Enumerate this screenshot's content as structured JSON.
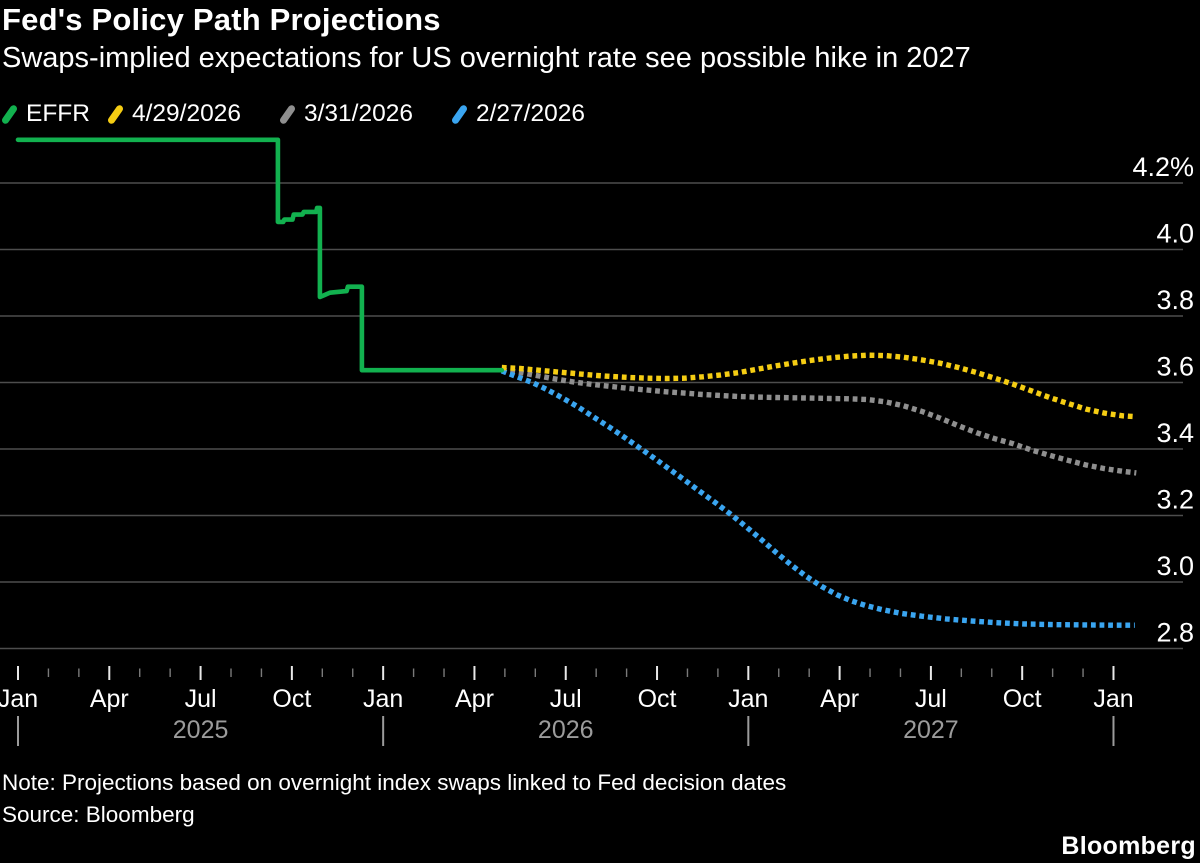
{
  "header": {
    "title": "Fed's Policy Path Projections",
    "subtitle": "Swaps-implied expectations for US overnight rate see possible hike in 2027"
  },
  "legend": {
    "items": [
      {
        "label": "EFFR",
        "color": "#12b14f",
        "icon": "slash-icon"
      },
      {
        "label": "4/29/2026",
        "color": "#f5cd13",
        "icon": "slash-icon"
      },
      {
        "label": "3/31/2026",
        "color": "#8f8f8f",
        "icon": "slash-icon"
      },
      {
        "label": "2/27/2026",
        "color": "#3aa5f0",
        "icon": "slash-icon"
      }
    ]
  },
  "notes": {
    "note": "Note: Projections based on overnight index swaps linked to Fed decision dates",
    "source": "Source: Bloomberg",
    "brand": "Bloomberg"
  },
  "colors": {
    "background": "#000000",
    "gridline": "#4d4d4d",
    "major_tick": "#e8e8e8",
    "minor_tick": "#7a7a7a",
    "year_text": "#9b9b9b",
    "axis_text": "#ffffff"
  },
  "chart_data": {
    "type": "line",
    "title": "Fed's Policy Path Projections",
    "subtitle": "Swaps-implied expectations for US overnight rate see possible hike in 2027",
    "grid": "horizontal",
    "legend_position": "top-left",
    "x_axis": {
      "unit": "months since Jan 2025",
      "tick_months": {
        "from": 0,
        "to": 36
      },
      "major_labels": [
        {
          "m": 0,
          "label": "Jan"
        },
        {
          "m": 3,
          "label": "Apr"
        },
        {
          "m": 6,
          "label": "Jul"
        },
        {
          "m": 9,
          "label": "Oct"
        },
        {
          "m": 12,
          "label": "Jan"
        },
        {
          "m": 15,
          "label": "Apr"
        },
        {
          "m": 18,
          "label": "Jul"
        },
        {
          "m": 21,
          "label": "Oct"
        },
        {
          "m": 24,
          "label": "Jan"
        },
        {
          "m": 27,
          "label": "Apr"
        },
        {
          "m": 30,
          "label": "Jul"
        },
        {
          "m": 33,
          "label": "Oct"
        },
        {
          "m": 36,
          "label": "Jan"
        }
      ],
      "year_labels": [
        {
          "m": 6,
          "label": "2025"
        },
        {
          "m": 18,
          "label": "2026"
        },
        {
          "m": 30,
          "label": "2027"
        }
      ],
      "jan_markers": [
        0,
        12,
        24,
        36
      ]
    },
    "y_axis": {
      "ylim": [
        2.67,
        4.38
      ],
      "unit": "percent",
      "ticks": [
        {
          "value": 4.2,
          "label": "4.2%"
        },
        {
          "value": 4.0,
          "label": "4.0"
        },
        {
          "value": 3.8,
          "label": "3.8"
        },
        {
          "value": 3.6,
          "label": "3.6"
        },
        {
          "value": 3.4,
          "label": "3.4"
        },
        {
          "value": 3.2,
          "label": "3.2"
        },
        {
          "value": 3.0,
          "label": "3.0"
        },
        {
          "value": 2.8,
          "label": "2.8"
        }
      ]
    },
    "series": [
      {
        "name": "EFFR",
        "color": "#12b14f",
        "style": "solid",
        "points": [
          [
            0,
            4.33
          ],
          [
            8.54,
            4.33
          ],
          [
            8.54,
            4.083
          ],
          [
            8.72,
            4.083
          ],
          [
            8.75,
            4.09
          ],
          [
            9.02,
            4.09
          ],
          [
            9.06,
            4.105
          ],
          [
            9.35,
            4.105
          ],
          [
            9.39,
            4.113
          ],
          [
            9.8,
            4.113
          ],
          [
            9.83,
            4.125
          ],
          [
            9.92,
            4.125
          ],
          [
            9.92,
            3.857
          ],
          [
            10.05,
            3.862
          ],
          [
            10.25,
            3.87
          ],
          [
            10.8,
            3.875
          ],
          [
            10.84,
            3.888
          ],
          [
            11.3,
            3.888
          ],
          [
            11.3,
            3.637
          ],
          [
            15.9,
            3.637
          ]
        ]
      },
      {
        "name": "4/29/2026",
        "color": "#f5cd13",
        "style": "dotted",
        "points": [
          [
            15.9,
            3.645
          ],
          [
            16.5,
            3.642
          ],
          [
            17.1,
            3.637
          ],
          [
            17.7,
            3.632
          ],
          [
            18.3,
            3.627
          ],
          [
            18.9,
            3.622
          ],
          [
            19.5,
            3.618
          ],
          [
            20.1,
            3.615
          ],
          [
            20.7,
            3.613
          ],
          [
            21.3,
            3.612
          ],
          [
            21.9,
            3.613
          ],
          [
            22.5,
            3.617
          ],
          [
            23.1,
            3.623
          ],
          [
            23.7,
            3.63
          ],
          [
            24.3,
            3.64
          ],
          [
            24.9,
            3.65
          ],
          [
            25.5,
            3.659
          ],
          [
            26.1,
            3.667
          ],
          [
            26.7,
            3.674
          ],
          [
            27.3,
            3.679
          ],
          [
            27.9,
            3.682
          ],
          [
            28.5,
            3.681
          ],
          [
            29.1,
            3.676
          ],
          [
            29.7,
            3.668
          ],
          [
            30.3,
            3.658
          ],
          [
            30.9,
            3.645
          ],
          [
            31.5,
            3.63
          ],
          [
            32.1,
            3.613
          ],
          [
            32.7,
            3.595
          ],
          [
            33.3,
            3.575
          ],
          [
            33.9,
            3.555
          ],
          [
            34.5,
            3.537
          ],
          [
            35.1,
            3.52
          ],
          [
            35.7,
            3.508
          ],
          [
            36.3,
            3.5
          ],
          [
            36.75,
            3.497
          ]
        ]
      },
      {
        "name": "3/31/2026",
        "color": "#8f8f8f",
        "style": "dotted",
        "points": [
          [
            15.9,
            3.638
          ],
          [
            16.5,
            3.63
          ],
          [
            17.1,
            3.62
          ],
          [
            17.7,
            3.61
          ],
          [
            18.3,
            3.601
          ],
          [
            18.9,
            3.594
          ],
          [
            19.5,
            3.588
          ],
          [
            20.1,
            3.582
          ],
          [
            20.7,
            3.577
          ],
          [
            21.3,
            3.572
          ],
          [
            21.9,
            3.568
          ],
          [
            22.5,
            3.564
          ],
          [
            23.1,
            3.561
          ],
          [
            23.7,
            3.558
          ],
          [
            24.3,
            3.556
          ],
          [
            24.9,
            3.555
          ],
          [
            25.5,
            3.554
          ],
          [
            26.1,
            3.553
          ],
          [
            26.7,
            3.552
          ],
          [
            27.3,
            3.551
          ],
          [
            27.9,
            3.549
          ],
          [
            28.5,
            3.542
          ],
          [
            29.1,
            3.53
          ],
          [
            29.7,
            3.513
          ],
          [
            30.3,
            3.493
          ],
          [
            30.9,
            3.47
          ],
          [
            31.5,
            3.449
          ],
          [
            32.1,
            3.431
          ],
          [
            32.7,
            3.416
          ],
          [
            33.3,
            3.397
          ],
          [
            33.9,
            3.381
          ],
          [
            34.5,
            3.366
          ],
          [
            35.1,
            3.352
          ],
          [
            35.7,
            3.341
          ],
          [
            36.3,
            3.333
          ],
          [
            36.75,
            3.328
          ]
        ]
      },
      {
        "name": "2/27/2026",
        "color": "#3aa5f0",
        "style": "dotted",
        "points": [
          [
            15.9,
            3.635
          ],
          [
            16.4,
            3.617
          ],
          [
            16.9,
            3.6
          ],
          [
            17.4,
            3.578
          ],
          [
            17.9,
            3.553
          ],
          [
            18.4,
            3.527
          ],
          [
            18.9,
            3.497
          ],
          [
            19.4,
            3.468
          ],
          [
            19.9,
            3.437
          ],
          [
            20.4,
            3.405
          ],
          [
            20.9,
            3.373
          ],
          [
            21.4,
            3.34
          ],
          [
            21.9,
            3.307
          ],
          [
            22.4,
            3.273
          ],
          [
            22.9,
            3.24
          ],
          [
            23.4,
            3.205
          ],
          [
            23.9,
            3.168
          ],
          [
            24.4,
            3.13
          ],
          [
            24.9,
            3.09
          ],
          [
            25.4,
            3.052
          ],
          [
            25.9,
            3.017
          ],
          [
            26.4,
            2.987
          ],
          [
            26.9,
            2.962
          ],
          [
            27.4,
            2.943
          ],
          [
            27.9,
            2.928
          ],
          [
            28.4,
            2.917
          ],
          [
            29.0,
            2.906
          ],
          [
            29.7,
            2.897
          ],
          [
            30.5,
            2.889
          ],
          [
            31.3,
            2.883
          ],
          [
            32.1,
            2.878
          ],
          [
            33.0,
            2.874
          ],
          [
            34.0,
            2.872
          ],
          [
            35.0,
            2.871
          ],
          [
            36.0,
            2.87
          ],
          [
            36.7,
            2.87
          ]
        ]
      }
    ]
  }
}
